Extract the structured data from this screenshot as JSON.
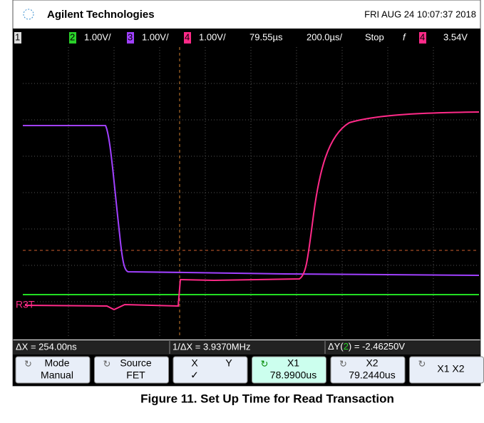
{
  "header": {
    "brand": "Agilent Technologies",
    "datetime": "FRI AUG 24 10:07:37 2018"
  },
  "status": {
    "ch1": "1",
    "ch2": "2",
    "ch2_scale": "1.00V/",
    "ch3": "3",
    "ch3_scale": "1.00V/",
    "ch4": "4",
    "ch4_scale": "1.00V/",
    "delay": "79.55µs",
    "timebase": "200.0µs/",
    "run": "Stop",
    "trig_ch": "4",
    "trig_level": "3.54V"
  },
  "trace_label": "R3T",
  "measurements": {
    "dx": "ΔX = 254.00ns",
    "inv_dx": "1/ΔX = 3.9370MHz",
    "dy_prefix": "ΔY(",
    "dy_ch": "2",
    "dy_suffix": ") = -2.46250V"
  },
  "softkeys": [
    {
      "title": "Mode",
      "value": "Manual"
    },
    {
      "title": "Source",
      "value": "FET"
    },
    {
      "title": "X",
      "title2": "Y",
      "value": "✓"
    },
    {
      "title": "X1",
      "value": "78.9900us"
    },
    {
      "title": "X2",
      "value": "79.2440us"
    },
    {
      "title": "X1 X2"
    }
  ],
  "caption": "Figure 11. Set Up Time for Read Transaction"
}
